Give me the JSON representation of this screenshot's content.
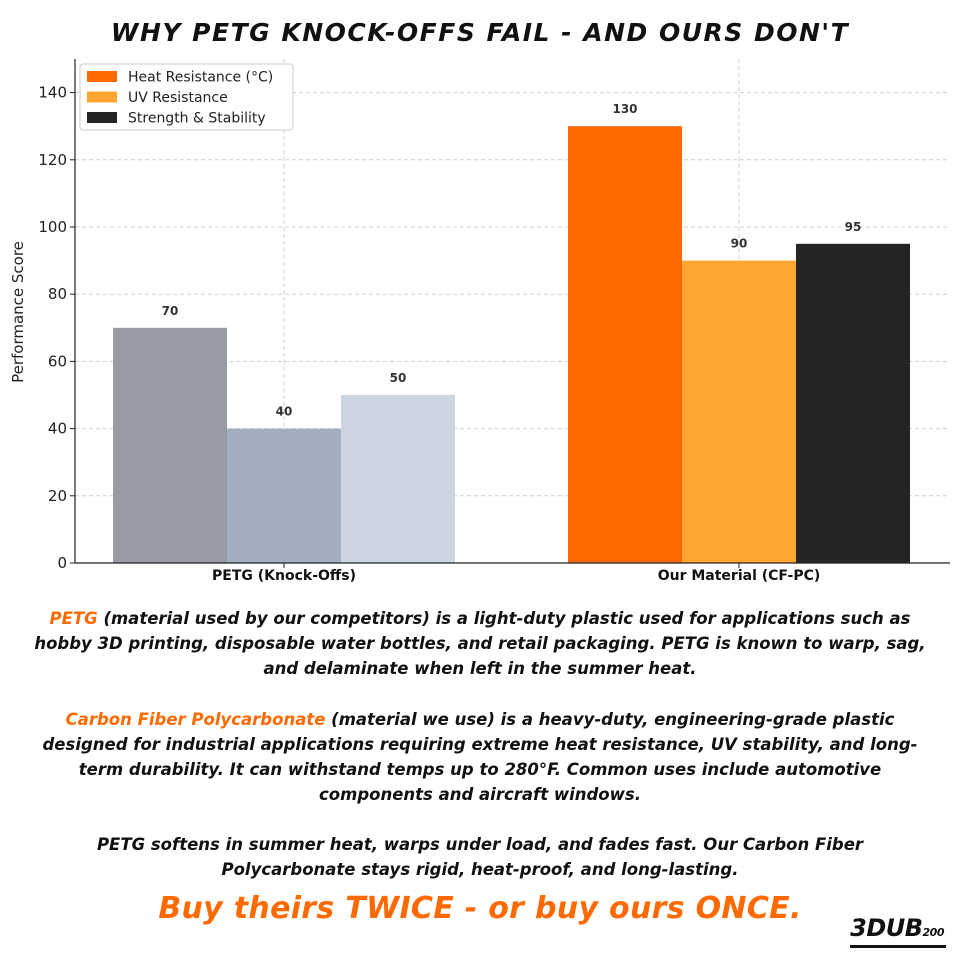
{
  "title": "WHY PETG KNOCK-OFFS FAIL - AND OURS DON'T",
  "chart_data": {
    "type": "bar",
    "title": "WHY PETG KNOCK-OFFS FAIL - AND OURS DON'T",
    "xlabel": "",
    "ylabel": "Performance Score",
    "ylim": [
      0,
      150
    ],
    "yticks": [
      0,
      20,
      40,
      60,
      80,
      100,
      120,
      140
    ],
    "grid": true,
    "legend_position": "top-left",
    "categories": [
      "PETG (Knock-Offs)",
      "Our Material (CF-PC)"
    ],
    "series": [
      {
        "name": "Heat Resistance (°C)",
        "values": [
          70,
          130
        ],
        "colors": [
          "#979ba5",
          "#ff6a00"
        ]
      },
      {
        "name": "UV Resistance",
        "values": [
          40,
          90
        ],
        "colors": [
          "#a2adbf",
          "#ffa630"
        ]
      },
      {
        "name": "Strength & Stability",
        "values": [
          50,
          95
        ],
        "colors": [
          "#ccd5e1",
          "#242424"
        ]
      }
    ],
    "legend_colors": [
      "#ff6a00",
      "#ffa630",
      "#242424"
    ]
  },
  "text": {
    "para1_highlight": "PETG",
    "para1_body": " (material used by our competitors) is a light-duty plastic used for applications such as hobby 3D printing, disposable water bottles, and retail packaging. PETG is known to warp, sag, and delaminate when left in the summer heat.",
    "para2_highlight": "Carbon Fiber Polycarbonate",
    "para2_body": " (material we use) is a heavy-duty, engineering-grade plastic designed for industrial applications requiring extreme heat resistance, UV stability, and long-term durability. It can withstand temps up to 280°F. Common uses include automotive components and aircraft windows.",
    "para3": "PETG softens in summer heat, warps under load, and fades fast. Our Carbon Fiber Polycarbonate stays rigid, heat-proof, and long-lasting.",
    "tagline": "Buy theirs TWICE - or buy ours ONCE."
  },
  "brand": {
    "main": "3DUB",
    "sub": "200"
  },
  "colors": {
    "accent": "#ff6a00",
    "dark": "#111111"
  }
}
